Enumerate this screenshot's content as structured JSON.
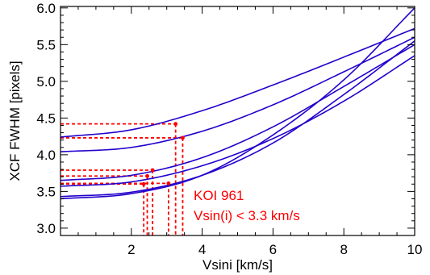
{
  "chart_data": {
    "type": "line",
    "title": "",
    "xlabel": "Vsini [km/s]",
    "ylabel": "XCF FWHM [pixels]",
    "xlim": [
      0,
      10
    ],
    "ylim": [
      2.9,
      6.02
    ],
    "xticks": [
      2,
      4,
      6,
      8,
      10
    ],
    "yticks": [
      3.0,
      3.5,
      4.0,
      4.5,
      5.0,
      5.5,
      6.0
    ],
    "xtick_labels": [
      "2",
      "4",
      "6",
      "8",
      "10"
    ],
    "ytick_labels": [
      "3.0",
      "3.5",
      "4.0",
      "4.5",
      "5.0",
      "5.5",
      "6.0"
    ],
    "grid": false,
    "legend": null,
    "colors": {
      "curve": "#2200cc",
      "marker": "#ff0000"
    },
    "series": [
      {
        "x": [
          0,
          2,
          4,
          6,
          8,
          10
        ],
        "y": [
          4.24,
          4.34,
          4.6,
          4.95,
          5.33,
          5.72
        ]
      },
      {
        "x": [
          0,
          2,
          4,
          6,
          8,
          10
        ],
        "y": [
          4.04,
          4.1,
          4.32,
          4.68,
          5.13,
          5.6
        ]
      },
      {
        "x": [
          0,
          2,
          4,
          6,
          8,
          10
        ],
        "y": [
          3.65,
          3.72,
          3.96,
          4.38,
          4.93,
          5.5
        ]
      },
      {
        "x": [
          0,
          2,
          4,
          6,
          8,
          10
        ],
        "y": [
          3.43,
          3.49,
          3.72,
          4.16,
          4.82,
          5.55
        ]
      },
      {
        "x": [
          0,
          2,
          4,
          6,
          8,
          10
        ],
        "y": [
          3.4,
          3.47,
          3.72,
          4.27,
          5.02,
          6.0
        ]
      },
      {
        "x": [
          0,
          2,
          4,
          6,
          8,
          10
        ],
        "y": [
          3.57,
          3.63,
          3.85,
          4.22,
          4.73,
          5.35
        ]
      }
    ],
    "markers": [
      {
        "x": 3.25,
        "y": 4.42
      },
      {
        "x": 3.45,
        "y": 4.23
      },
      {
        "x": 2.6,
        "y": 3.79
      },
      {
        "x": 2.45,
        "y": 3.71
      },
      {
        "x": 3.05,
        "y": 3.61
      },
      {
        "x": 2.35,
        "y": 3.6
      }
    ],
    "annotations": [
      "KOI 961",
      "Vsin(i) < 3.3 km/s"
    ]
  }
}
